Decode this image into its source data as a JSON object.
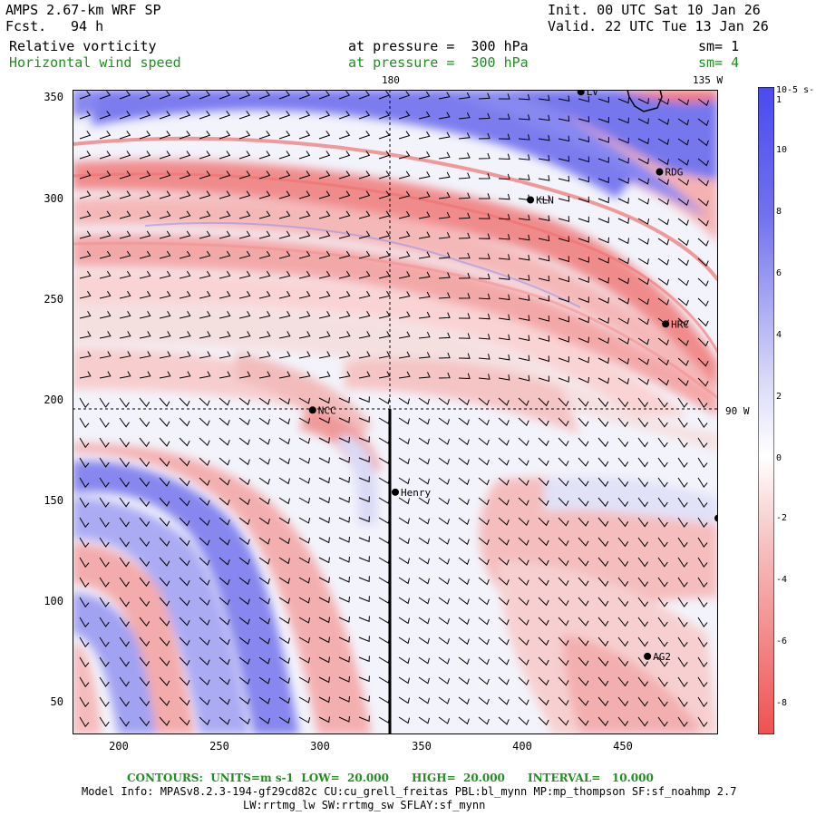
{
  "header": {
    "model": "AMPS 2.67-km WRF SP",
    "fcst_label": "Fcst.",
    "fcst_value": "94 h",
    "init": "Init. 00 UTC Sat 10 Jan 26",
    "valid": "Valid. 22 UTC Tue 13 Jan 26",
    "field1_name": "Relative vorticity",
    "field1_level": "at pressure =  300 hPa",
    "field1_sm": "sm= 1",
    "field2_name": "Horizontal wind speed",
    "field2_level": "at pressure =  300 hPa",
    "field2_sm": "sm= 4"
  },
  "map": {
    "meridian_label": "180",
    "meridian_135_label": "135 W",
    "meridian_90_label": "90 W",
    "x_ticks": [
      "200",
      "250",
      "300",
      "350",
      "400",
      "450"
    ],
    "y_ticks": [
      "350",
      "300",
      "250",
      "200",
      "150",
      "100",
      "50"
    ],
    "x_range": [
      175,
      495
    ],
    "y_range": [
      33,
      355
    ],
    "stations": [
      {
        "name": "LV",
        "x": 427,
        "y": 354
      },
      {
        "name": "RDG",
        "x": 466,
        "y": 314
      },
      {
        "name": "KLN",
        "x": 402,
        "y": 300
      },
      {
        "name": "HRC",
        "x": 469,
        "y": 238
      },
      {
        "name": "NCC",
        "x": 294,
        "y": 195
      },
      {
        "name": "Henry",
        "x": 335,
        "y": 154
      },
      {
        "name": "",
        "x": 495,
        "y": 141
      },
      {
        "name": "AG2",
        "x": 460,
        "y": 72
      }
    ]
  },
  "colorbar": {
    "unit_label": "10-5 s-1",
    "labels": [
      "10",
      "8",
      "6",
      "4",
      "2",
      "0",
      "-2",
      "-4",
      "-6",
      "-8"
    ],
    "positive_color": "#4a4af0",
    "negative_color": "#f05050"
  },
  "footer": {
    "contours": "CONTOURS:  UNITS=m s-1  LOW=  20.000      HIGH=  20.000      INTERVAL=   10.000",
    "model_info": "Model Info: MPASv8.2.3-194-gf29cd82c CU:cu_grell_freitas PBL:bl_mynn MP:mp_thompson SF:sf_noahmp 2.7",
    "physics": "LW:rrtmg_lw SW:rrtmg_sw SFLAY:sf_mynn"
  }
}
